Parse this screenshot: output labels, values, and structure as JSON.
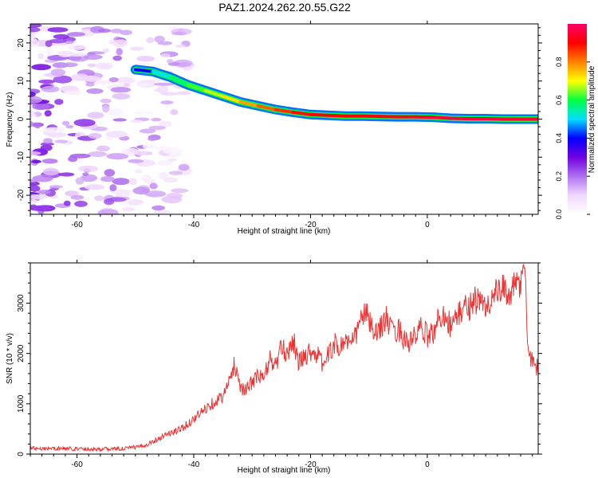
{
  "title": "PAZ1.2024.262.20.55.G22",
  "chart_data": [
    {
      "type": "heatmap",
      "xlabel": "Height of straight line (km)",
      "ylabel": "Frequency (Hz)",
      "xlim": [
        -68,
        19
      ],
      "ylim": [
        -25,
        25
      ],
      "xticks": [
        -60,
        -40,
        -20,
        0
      ],
      "yticks": [
        -20,
        -10,
        0,
        10,
        20
      ],
      "colorbar": {
        "label": "Normalized spectral amplitude",
        "range": [
          0,
          1
        ],
        "ticks": [
          "0.0",
          "0.2",
          "0.4",
          "0.6",
          "0.8"
        ],
        "colormap": [
          "#ffffff",
          "#f0d8ff",
          "#b070f0",
          "#7000e0",
          "#0000ff",
          "#00e0ff",
          "#00ff40",
          "#ffff00",
          "#ff8000",
          "#ff0000",
          "#ff0066"
        ]
      },
      "ridge": {
        "x": [
          -50,
          -47,
          -44,
          -41,
          -38,
          -35,
          -32,
          -29,
          -26,
          -23,
          -20,
          -17,
          -14,
          -11,
          -8,
          -5,
          -2,
          1,
          4,
          7,
          10,
          13,
          16,
          19
        ],
        "y": [
          13,
          12.5,
          11,
          9,
          7.5,
          6,
          4.5,
          3.5,
          2.5,
          1.8,
          1.2,
          1,
          0.8,
          0.8,
          0.7,
          0.6,
          0.6,
          0.5,
          0.2,
          0.1,
          0.1,
          0,
          0,
          0
        ],
        "amplitude": [
          0.35,
          0.45,
          0.55,
          0.6,
          0.65,
          0.7,
          0.75,
          0.8,
          0.85,
          0.88,
          0.9,
          0.9,
          0.9,
          0.9,
          0.92,
          0.92,
          0.93,
          0.95,
          0.97,
          0.97,
          0.97,
          0.96,
          0.95,
          0.95
        ]
      },
      "noise_region": {
        "x_range": [
          -68,
          -45
        ],
        "amplitude_max": 0.3
      }
    },
    {
      "type": "line",
      "xlabel": "Height of straight line (km)",
      "ylabel": "SNR (10 * v/v)",
      "xlim": [
        -68,
        19
      ],
      "ylim": [
        0,
        3800
      ],
      "xticks": [
        -60,
        -40,
        -20,
        0
      ],
      "yticks": [
        0,
        1000,
        2000,
        3000
      ],
      "color": "#ee3333",
      "series": [
        {
          "x": [
            -68,
            -62,
            -56,
            -52,
            -49,
            -47,
            -45,
            -43,
            -41,
            -39,
            -37,
            -35,
            -34,
            -33,
            -32,
            -31,
            -30,
            -29,
            -28,
            -27,
            -26,
            -25,
            -24,
            -23,
            -22,
            -21,
            -20,
            -19,
            -18,
            -17,
            -16,
            -15,
            -14,
            -13,
            -12,
            -11,
            -10,
            -9,
            -8,
            -7,
            -6,
            -5,
            -4,
            -3,
            -2,
            -1,
            0,
            1,
            2,
            3,
            4,
            5,
            6,
            7,
            8,
            9,
            10,
            11,
            12,
            13,
            14,
            15,
            16,
            16.8,
            17.2,
            18,
            19
          ],
          "y": [
            120,
            110,
            100,
            110,
            150,
            250,
            380,
            450,
            600,
            800,
            1000,
            1150,
            1400,
            1800,
            1350,
            1250,
            1450,
            1550,
            1500,
            1900,
            1750,
            2100,
            2000,
            2300,
            1800,
            1950,
            2050,
            2000,
            1800,
            1950,
            2200,
            2100,
            2300,
            2150,
            2450,
            2800,
            2700,
            2300,
            2550,
            2700,
            2400,
            2500,
            2300,
            2200,
            2350,
            2500,
            2350,
            2400,
            2700,
            2800,
            2550,
            2700,
            2900,
            2900,
            3100,
            3000,
            2900,
            3100,
            3200,
            3250,
            3200,
            3300,
            3400,
            3750,
            2050,
            1850,
            1700
          ]
        }
      ]
    }
  ]
}
